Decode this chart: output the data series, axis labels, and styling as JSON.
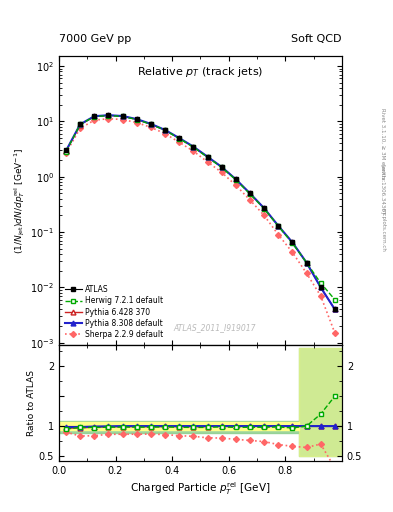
{
  "header_left": "7000 GeV pp",
  "header_right": "Soft QCD",
  "watermark": "ATLAS_2011_I919017",
  "rivet_label": "Rivet 3.1.10, ≥ 3M events",
  "arxiv_label": "[arXiv:1306.3436]",
  "mcplots_label": "mcplots.cern.ch",
  "x": [
    0.025,
    0.075,
    0.125,
    0.175,
    0.225,
    0.275,
    0.325,
    0.375,
    0.425,
    0.475,
    0.525,
    0.575,
    0.625,
    0.675,
    0.725,
    0.775,
    0.825,
    0.875,
    0.925,
    0.975
  ],
  "y_atlas": [
    3.0,
    9.0,
    12.5,
    13.0,
    12.5,
    11.0,
    9.0,
    7.0,
    5.0,
    3.5,
    2.3,
    1.5,
    0.9,
    0.5,
    0.27,
    0.13,
    0.065,
    0.028,
    0.01,
    0.004
  ],
  "yerr_atlas": [
    0.12,
    0.25,
    0.35,
    0.35,
    0.35,
    0.3,
    0.25,
    0.19,
    0.14,
    0.09,
    0.06,
    0.04,
    0.025,
    0.015,
    0.009,
    0.005,
    0.0025,
    0.0012,
    0.0006,
    0.0002
  ],
  "y_herwig": [
    2.85,
    8.8,
    12.2,
    12.75,
    12.3,
    10.8,
    8.85,
    6.9,
    4.9,
    3.42,
    2.25,
    1.48,
    0.88,
    0.49,
    0.265,
    0.128,
    0.063,
    0.028,
    0.012,
    0.006
  ],
  "y_pythia6": [
    2.9,
    8.7,
    12.3,
    12.85,
    12.4,
    10.9,
    8.9,
    6.95,
    4.95,
    3.46,
    2.28,
    1.5,
    0.9,
    0.5,
    0.27,
    0.13,
    0.065,
    0.028,
    0.01,
    0.004
  ],
  "y_pythia8": [
    2.95,
    8.85,
    12.4,
    12.95,
    12.5,
    11.0,
    9.0,
    7.0,
    5.0,
    3.5,
    2.3,
    1.5,
    0.9,
    0.5,
    0.27,
    0.13,
    0.065,
    0.028,
    0.01,
    0.004
  ],
  "y_sherpa": [
    2.7,
    7.5,
    10.5,
    11.2,
    10.8,
    9.5,
    7.8,
    6.0,
    4.2,
    2.9,
    1.85,
    1.2,
    0.7,
    0.38,
    0.2,
    0.09,
    0.043,
    0.018,
    0.007,
    0.0015
  ],
  "ratio_herwig": [
    0.95,
    0.978,
    0.976,
    0.981,
    0.984,
    0.982,
    0.983,
    0.986,
    0.98,
    0.977,
    0.978,
    0.987,
    0.978,
    0.98,
    0.981,
    0.985,
    0.969,
    1.0,
    1.2,
    1.5
  ],
  "ratio_pythia6": [
    0.967,
    0.967,
    0.984,
    0.988,
    0.992,
    0.991,
    0.989,
    0.993,
    0.99,
    0.989,
    0.991,
    1.0,
    1.0,
    1.0,
    1.0,
    1.0,
    1.0,
    1.0,
    1.0,
    1.0
  ],
  "ratio_pythia8": [
    0.983,
    0.983,
    0.992,
    0.996,
    1.0,
    1.0,
    1.0,
    1.0,
    1.0,
    1.0,
    1.0,
    1.0,
    1.0,
    1.0,
    1.0,
    1.0,
    1.0,
    1.0,
    1.0,
    1.0
  ],
  "ratio_sherpa": [
    0.9,
    0.833,
    0.84,
    0.862,
    0.864,
    0.864,
    0.867,
    0.857,
    0.84,
    0.829,
    0.804,
    0.8,
    0.778,
    0.76,
    0.741,
    0.692,
    0.662,
    0.643,
    0.7,
    0.3
  ],
  "color_atlas": "#000000",
  "color_herwig": "#00aa00",
  "color_pythia6": "#cc2222",
  "color_pythia8": "#2222cc",
  "color_sherpa": "#ff6666",
  "atlas_band_yellow": "#ffff88",
  "atlas_band_green": "#88cc88",
  "ylim_main": [
    0.0009,
    150
  ],
  "ylim_ratio": [
    0.42,
    2.35
  ],
  "xlim": [
    0.0,
    1.0
  ]
}
